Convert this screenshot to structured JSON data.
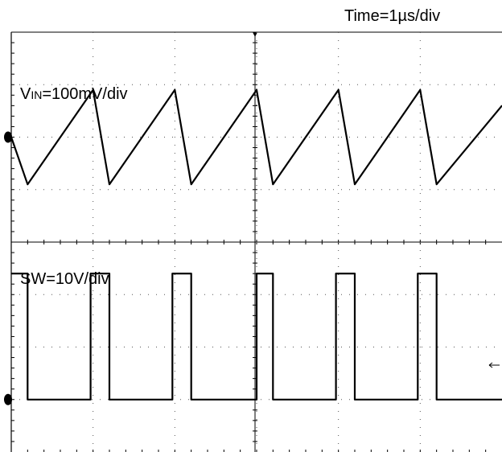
{
  "chart_data": [
    {
      "type": "line",
      "title": "",
      "time_scale_label": "Time=1µs/div",
      "channel_label_main": "V",
      "channel_label_sub": "IN",
      "channel_label_rest": "=100mV/div",
      "xlabel": "",
      "ylabel": "",
      "x_unit": "µs",
      "y_unit": "mV",
      "xlim": [
        0,
        6
      ],
      "ylim": [
        -200,
        200
      ],
      "grid": true,
      "series": [
        {
          "name": "",
          "x": [
            0,
            0.2,
            1.0,
            1.2,
            2.0,
            2.2,
            3.0,
            3.2,
            4.0,
            4.2,
            5.0,
            5.2,
            6.0
          ],
          "y": [
            0,
            -90,
            90,
            -90,
            90,
            -90,
            90,
            -90,
            90,
            -90,
            90,
            -90,
            60
          ]
        }
      ]
    },
    {
      "type": "line",
      "title": "",
      "channel_label": "SW=10V/div",
      "xlabel": "",
      "ylabel": "",
      "x_unit": "µs",
      "y_unit": "V",
      "xlim": [
        0,
        6
      ],
      "ylim": [
        -10,
        30
      ],
      "grid": true,
      "series": [
        {
          "name": "",
          "x": [
            0,
            0.2,
            0.2,
            0.97,
            0.97,
            1.2,
            1.2,
            1.97,
            1.97,
            2.2,
            2.2,
            3.0,
            3.0,
            3.2,
            3.2,
            3.97,
            3.97,
            4.2,
            4.2,
            4.97,
            4.97,
            5.2,
            5.2,
            6.0
          ],
          "y": [
            24,
            24,
            0,
            0,
            24,
            24,
            0,
            0,
            24,
            24,
            0,
            0,
            24,
            24,
            0,
            0,
            24,
            24,
            0,
            0,
            24,
            24,
            0,
            0
          ]
        }
      ]
    }
  ]
}
